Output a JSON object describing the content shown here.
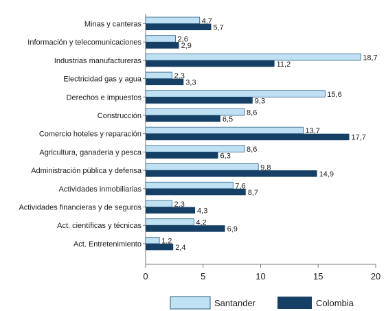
{
  "chart_data": {
    "type": "bar",
    "orientation": "horizontal",
    "categories": [
      "Minas y canteras",
      "Información y telecomunicaciones",
      "Industrias manufactureras",
      "Electricidad gas y agua",
      "Derechos e impuestos",
      "Construcción",
      "Comercio hoteles y reparación",
      "Agricultura, ganaderia y pesca",
      "Administración pública y defensa",
      "Actividades inmobiliarias",
      "Actividades financieras y de seguros",
      "Act. científicas y técnicas",
      "Act. Entretenimiento"
    ],
    "series": [
      {
        "name": "Santander",
        "color": "#bfe1f3",
        "values": [
          4.7,
          2.6,
          18.7,
          2.3,
          15.6,
          8.6,
          13.7,
          8.6,
          9.8,
          7.6,
          2.3,
          4.2,
          1.2
        ],
        "labels": [
          "4,7",
          "2,6",
          "18,7",
          "2,3",
          "15,6",
          "8,6",
          "13,7",
          "8,6",
          "9,8",
          "7,6",
          "2,3",
          "4,2",
          "1,2"
        ]
      },
      {
        "name": "Colombia",
        "color": "#163f66",
        "values": [
          5.7,
          2.9,
          11.2,
          3.3,
          9.3,
          6.5,
          17.7,
          6.3,
          14.9,
          8.7,
          4.3,
          6.9,
          2.4
        ],
        "labels": [
          "5,7",
          "2,9",
          "11,2",
          "3,3",
          "9,3",
          "6,5",
          "17,7",
          "6,3",
          "14,9",
          "8,7",
          "4,3",
          "6,9",
          "2,4"
        ]
      }
    ],
    "xlim": [
      0,
      20
    ],
    "xticks": [
      0,
      5,
      10,
      15,
      20
    ],
    "xtick_labels": [
      "0",
      "5",
      "10",
      "15",
      "20"
    ],
    "grid": false,
    "legend_position": "bottom-right",
    "outline_color": "#2a5d80",
    "axis_color": "#7a7a7a"
  }
}
